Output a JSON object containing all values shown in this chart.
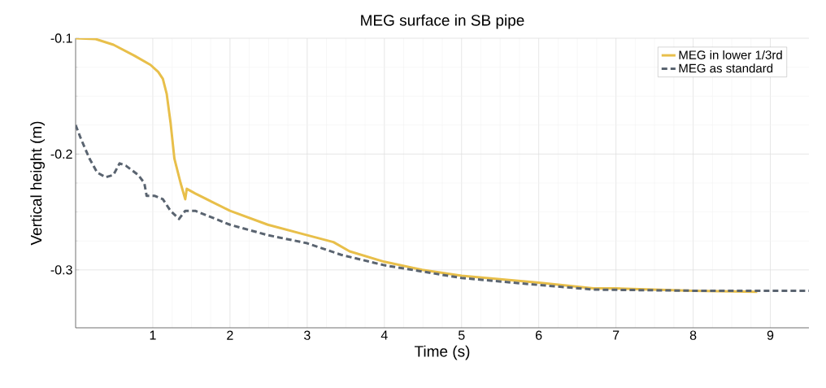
{
  "chart_data": {
    "type": "line",
    "title": "MEG surface in SB pipe",
    "xlabel": "Time (s)",
    "ylabel": "Vertical height (m)",
    "xlim": [
      0,
      9.5
    ],
    "ylim": [
      -0.35,
      -0.1
    ],
    "xticks": [
      1,
      2,
      3,
      4,
      5,
      6,
      7,
      8,
      9
    ],
    "yticks": [
      -0.3,
      -0.2,
      -0.1
    ],
    "grid": true,
    "legend": "top right",
    "marker": "none",
    "series": [
      {
        "name": "MEG in lower 1/3rd",
        "color": "#e8bf4a",
        "line_style": "solid",
        "x": [
          0,
          0.26,
          0.49,
          0.76,
          0.97,
          1.07,
          1.13,
          1.18,
          1.23,
          1.28,
          1.36,
          1.42,
          1.44,
          1.55,
          1.76,
          2.0,
          2.49,
          3.0,
          3.34,
          3.55,
          4.0,
          4.49,
          5.0,
          6.0,
          6.71,
          7.0,
          8.0,
          8.83
        ],
        "values": [
          -0.1,
          -0.1007,
          -0.1056,
          -0.115,
          -0.123,
          -0.129,
          -0.135,
          -0.148,
          -0.173,
          -0.204,
          -0.225,
          -0.239,
          -0.23,
          -0.234,
          -0.241,
          -0.249,
          -0.261,
          -0.27,
          -0.276,
          -0.284,
          -0.293,
          -0.3,
          -0.305,
          -0.311,
          -0.316,
          -0.316,
          -0.318,
          -0.319
        ]
      },
      {
        "name": "MEG as standard",
        "color": "#5a6470",
        "line_style": "dashed",
        "x": [
          0,
          0.07,
          0.18,
          0.28,
          0.39,
          0.49,
          0.57,
          0.65,
          0.81,
          0.89,
          0.92,
          1.02,
          1.13,
          1.23,
          1.34,
          1.42,
          1.55,
          2.0,
          2.49,
          3.0,
          3.44,
          4.0,
          5.0,
          6.0,
          6.71,
          8.0,
          9.5
        ],
        "values": [
          -0.175,
          -0.187,
          -0.204,
          -0.216,
          -0.22,
          -0.218,
          -0.208,
          -0.21,
          -0.218,
          -0.225,
          -0.236,
          -0.236,
          -0.239,
          -0.249,
          -0.256,
          -0.249,
          -0.249,
          -0.261,
          -0.27,
          -0.277,
          -0.287,
          -0.296,
          -0.307,
          -0.313,
          -0.317,
          -0.318,
          -0.318
        ]
      }
    ]
  }
}
